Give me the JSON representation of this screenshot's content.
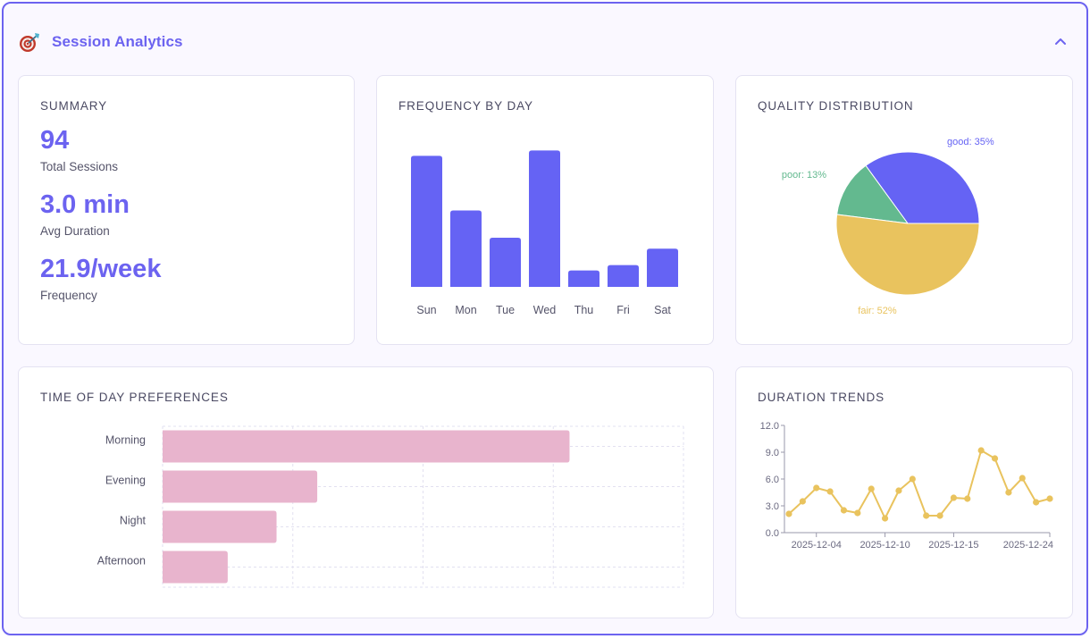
{
  "header": {
    "icon": "dart-target-icon",
    "title": "Session Analytics",
    "collapse_icon": "chevron-up-icon"
  },
  "colors": {
    "accent": "#6c63f0",
    "green": "#63b98f",
    "yellow": "#e9c35e",
    "pink": "#e8b4cd",
    "border": "#6c63f0"
  },
  "summary": {
    "title": "SUMMARY",
    "stats": [
      {
        "value": "94",
        "label": "Total Sessions"
      },
      {
        "value": "3.0 min",
        "label": "Avg Duration"
      },
      {
        "value": "21.9/week",
        "label": "Frequency"
      }
    ]
  },
  "frequency": {
    "title": "FREQUENCY BY DAY"
  },
  "quality": {
    "title": "QUALITY DISTRIBUTION"
  },
  "time_of_day": {
    "title": "TIME OF DAY PREFERENCES"
  },
  "duration": {
    "title": "DURATION TRENDS"
  },
  "chart_data": [
    {
      "id": "frequency",
      "type": "bar",
      "title": "FREQUENCY BY DAY",
      "categories": [
        "Sun",
        "Mon",
        "Tue",
        "Wed",
        "Thu",
        "Fri",
        "Sat"
      ],
      "values": [
        24,
        14,
        9,
        25,
        3,
        4,
        7
      ],
      "ylim": [
        0,
        28
      ],
      "xlabel": "",
      "ylabel": "",
      "grid": false,
      "color": "#6563f4"
    },
    {
      "id": "quality",
      "type": "pie",
      "title": "QUALITY DISTRIBUTION",
      "slices": [
        {
          "label": "good",
          "value": 35,
          "display": "good: 35%",
          "color": "#6563f4"
        },
        {
          "label": "poor",
          "value": 13,
          "display": "poor: 13%",
          "color": "#63b98f"
        },
        {
          "label": "fair",
          "value": 52,
          "display": "fair: 52%",
          "color": "#e9c35e"
        }
      ]
    },
    {
      "id": "time_of_day",
      "type": "bar",
      "orientation": "horizontal",
      "title": "TIME OF DAY PREFERENCES",
      "categories": [
        "Morning",
        "Evening",
        "Night",
        "Afternoon"
      ],
      "values": [
        50,
        19,
        14,
        8
      ],
      "xlim": [
        0,
        64
      ],
      "grid": true,
      "color": "#e8b4cd"
    },
    {
      "id": "duration",
      "type": "line",
      "title": "DURATION TRENDS",
      "x_ticks": [
        "2025-12-04",
        "2025-12-10",
        "2025-12-15",
        "2025-12-24"
      ],
      "x_tick_index": [
        2,
        7,
        12,
        19
      ],
      "y_ticks": [
        "0.0",
        "3.0",
        "6.0",
        "9.0",
        "12.0"
      ],
      "ylim": [
        0,
        12
      ],
      "series": [
        {
          "name": "duration",
          "color": "#e9c35e",
          "values": [
            2.1,
            3.5,
            5.0,
            4.6,
            2.5,
            2.2,
            4.9,
            1.6,
            4.7,
            6.0,
            1.9,
            1.9,
            3.9,
            3.8,
            9.2,
            8.3,
            4.5,
            6.1,
            3.4,
            3.8
          ]
        }
      ]
    }
  ]
}
